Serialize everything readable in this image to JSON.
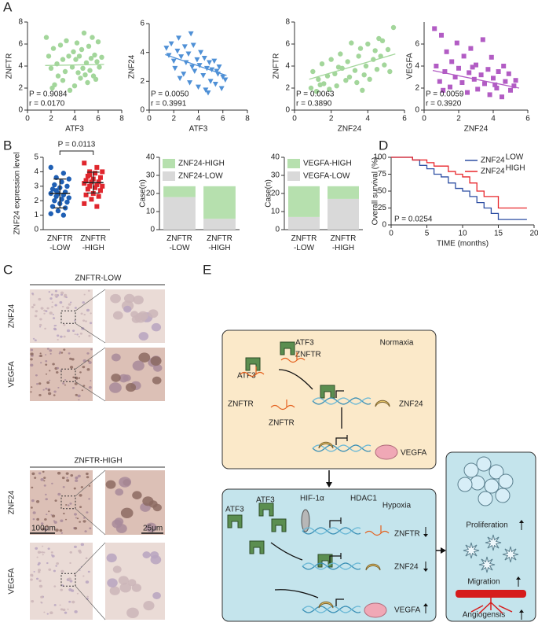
{
  "panel_labels": [
    "A",
    "B",
    "C",
    "D",
    "E"
  ],
  "chart_data": [
    {
      "type": "scatter",
      "x_label": "ATF3",
      "y_label": "ZNFTR",
      "color": "#a3d69b",
      "marker": "circle",
      "xlim": [
        0,
        8
      ],
      "ylim": [
        0,
        8
      ],
      "xticks": [
        0,
        2,
        4,
        6,
        8
      ],
      "yticks": [
        0,
        2,
        4,
        6,
        8
      ],
      "x": [
        1.6,
        1.8,
        2.0,
        2.2,
        2.3,
        2.5,
        2.6,
        2.8,
        3.0,
        3.0,
        3.2,
        3.3,
        3.5,
        3.6,
        3.8,
        3.9,
        4.0,
        4.1,
        4.2,
        4.3,
        4.4,
        4.5,
        4.6,
        4.7,
        4.8,
        5.0,
        5.1,
        5.2,
        5.3,
        5.4,
        5.5,
        5.6,
        5.7,
        5.8,
        5.9,
        6.0,
        6.1,
        6.3,
        2.1,
        4.9
      ],
      "y": [
        6.6,
        4.9,
        3.8,
        5.6,
        2.3,
        4.2,
        3.1,
        5.9,
        4.6,
        2.7,
        3.5,
        6.3,
        4.9,
        1.8,
        3.9,
        5.3,
        2.2,
        4.6,
        6.1,
        3.4,
        4.9,
        2.9,
        5.5,
        3.8,
        7.0,
        4.3,
        2.5,
        5.8,
        3.6,
        4.7,
        6.6,
        3.1,
        5.0,
        2.8,
        4.4,
        6.2,
        3.9,
        4.8,
        2.0,
        3.2
      ],
      "trend": {
        "x": [
          1.5,
          6.5
        ],
        "y": [
          4.05,
          4.15
        ]
      },
      "annotations": [
        "P = 0.9084",
        "r = 0.0170"
      ]
    },
    {
      "type": "scatter",
      "x_label": "ATF3",
      "y_label": "ZNF24",
      "color": "#4f90d6",
      "marker": "triangle",
      "xlim": [
        0,
        8
      ],
      "ylim": [
        0,
        6
      ],
      "xticks": [
        0,
        2,
        4,
        6,
        8
      ],
      "yticks": [
        0,
        2,
        4,
        6
      ],
      "x": [
        1.4,
        1.6,
        1.8,
        2.0,
        2.1,
        2.3,
        2.4,
        2.6,
        2.8,
        2.9,
        3.0,
        3.2,
        3.3,
        3.5,
        3.6,
        3.7,
        3.9,
        4.0,
        4.1,
        4.2,
        4.4,
        4.5,
        4.6,
        4.7,
        4.9,
        5.0,
        5.1,
        5.3,
        5.4,
        5.6,
        5.7,
        5.9,
        6.0,
        6.2,
        3.4,
        4.8,
        2.5,
        5.5
      ],
      "y": [
        4.3,
        3.8,
        4.6,
        3.4,
        2.9,
        4.1,
        5.0,
        3.7,
        2.5,
        4.4,
        3.3,
        3.9,
        1.9,
        3.0,
        4.5,
        2.7,
        3.5,
        1.6,
        3.1,
        4.0,
        2.4,
        3.6,
        1.4,
        2.9,
        3.3,
        2.0,
        2.8,
        3.4,
        1.8,
        2.5,
        3.0,
        1.5,
        2.3,
        2.1,
        5.3,
        1.2,
        2.2,
        2.7
      ],
      "trend": {
        "x": [
          1.3,
          6.3
        ],
        "y": [
          3.85,
          2.4
        ]
      },
      "annotations": [
        "P = 0.0050",
        "r = 0.3991"
      ]
    },
    {
      "type": "scatter",
      "x_label": "ZNF24",
      "y_label": "ZNFTR",
      "color": "#a3d69b",
      "marker": "circle",
      "xlim": [
        0,
        6
      ],
      "ylim": [
        0,
        8
      ],
      "xticks": [
        0,
        2,
        4,
        6
      ],
      "yticks": [
        0,
        2,
        4,
        6,
        8
      ],
      "x": [
        0.9,
        1.0,
        1.2,
        1.3,
        1.5,
        1.6,
        1.8,
        1.9,
        2.0,
        2.2,
        2.3,
        2.5,
        2.6,
        2.8,
        2.9,
        3.0,
        3.1,
        3.3,
        3.4,
        3.5,
        3.6,
        3.8,
        3.9,
        4.0,
        4.1,
        4.3,
        4.4,
        4.5,
        4.7,
        4.8,
        4.9,
        5.1,
        5.2,
        5.4,
        2.4,
        3.7,
        1.4,
        4.6
      ],
      "y": [
        2.0,
        3.5,
        1.7,
        2.8,
        4.2,
        2.4,
        3.1,
        1.9,
        4.6,
        3.3,
        2.2,
        5.1,
        3.8,
        2.7,
        4.4,
        3.0,
        6.1,
        3.6,
        2.5,
        4.9,
        5.6,
        3.2,
        4.0,
        6.0,
        2.8,
        4.6,
        5.4,
        3.7,
        4.9,
        6.3,
        4.1,
        5.5,
        3.5,
        7.5,
        3.9,
        1.8,
        2.3,
        6.5
      ],
      "trend": {
        "x": [
          0.8,
          5.5
        ],
        "y": [
          2.8,
          5.1
        ]
      },
      "annotations": [
        "P = 0.0063",
        "r = 0.3890"
      ]
    },
    {
      "type": "scatter",
      "x_label": "ZNF24",
      "y_label": "VEGFA",
      "color": "#b25cc4",
      "marker": "square",
      "xlim": [
        0,
        6
      ],
      "ylim": [
        0,
        8
      ],
      "xticks": [
        0,
        2,
        4,
        6
      ],
      "yticks": [
        0,
        2,
        4,
        6
      ],
      "x": [
        0.6,
        0.7,
        0.9,
        1.0,
        1.2,
        1.3,
        1.5,
        1.6,
        1.8,
        1.9,
        2.0,
        2.2,
        2.3,
        2.5,
        2.6,
        2.7,
        2.9,
        3.0,
        3.1,
        3.3,
        3.4,
        3.5,
        3.7,
        3.8,
        3.9,
        4.0,
        4.2,
        4.3,
        4.5,
        4.6,
        4.7,
        4.9,
        5.0,
        5.2,
        5.3,
        1.1,
        2.8,
        4.1
      ],
      "y": [
        7.4,
        4.0,
        2.6,
        6.8,
        3.5,
        5.3,
        2.1,
        4.4,
        3.0,
        6.1,
        3.8,
        2.5,
        4.9,
        1.6,
        3.4,
        5.6,
        2.8,
        4.1,
        1.9,
        3.2,
        6.4,
        2.4,
        3.7,
        1.4,
        4.8,
        2.9,
        2.0,
        3.5,
        1.2,
        4.0,
        2.6,
        3.3,
        1.8,
        2.2,
        2.7,
        1.8,
        3.9,
        2.3
      ],
      "trend": {
        "x": [
          0.5,
          5.5
        ],
        "y": [
          3.6,
          2.0
        ]
      },
      "annotations": [
        "P = 0.0059",
        "r = 0.3920"
      ]
    },
    {
      "type": "strip",
      "y_label": "ZNF24 expression level",
      "categories": [
        "ZNFTR\n-LOW",
        "ZNFTR\n-HIGH"
      ],
      "ylim": [
        0,
        5
      ],
      "yticks": [
        0,
        1,
        2,
        3,
        4,
        5
      ],
      "series": [
        {
          "color": "#1f5fb4",
          "marker": "circle",
          "mean": 2.5,
          "sd": 1.0,
          "values": [
            4.3,
            3.9,
            3.6,
            3.5,
            3.3,
            3.1,
            3.0,
            2.9,
            2.8,
            2.6,
            2.5,
            2.5,
            2.4,
            2.3,
            2.2,
            2.1,
            2.0,
            1.9,
            1.8,
            1.6,
            1.5,
            1.3,
            1.1,
            1.0,
            2.7
          ]
        },
        {
          "color": "#e0262d",
          "marker": "square",
          "mean": 3.25,
          "sd": 0.72,
          "values": [
            4.6,
            4.3,
            4.0,
            4.0,
            3.9,
            3.7,
            3.6,
            3.5,
            3.4,
            3.3,
            3.3,
            3.2,
            3.1,
            3.0,
            3.0,
            2.9,
            2.8,
            2.7,
            2.5,
            2.4,
            2.3,
            2.1,
            1.8,
            1.6,
            3.8
          ]
        }
      ],
      "annotation": "P = 0.0113"
    },
    {
      "type": "bar",
      "stacked": true,
      "y_label": "Case(n)",
      "categories": [
        "ZNFTR\n-LOW",
        "ZNFTR\n-HIGH"
      ],
      "ylim": [
        0,
        40
      ],
      "yticks": [
        0,
        10,
        20,
        30,
        40
      ],
      "legend": "top-left",
      "series": [
        {
          "name": "ZNF24-LOW",
          "color": "#d9d9d9",
          "values": [
            18,
            6
          ]
        },
        {
          "name": "ZNF24-HIGH",
          "color": "#b6e0ae",
          "values": [
            6,
            18
          ]
        }
      ]
    },
    {
      "type": "bar",
      "stacked": true,
      "y_label": "Case(n)",
      "categories": [
        "ZNFTR\n-LOW",
        "ZNFTR\n-HIGH"
      ],
      "ylim": [
        0,
        40
      ],
      "yticks": [
        0,
        10,
        20,
        30,
        40
      ],
      "legend": "top-left",
      "series": [
        {
          "name": "VEGFA-LOW",
          "color": "#d9d9d9",
          "values": [
            7,
            17
          ]
        },
        {
          "name": "VEGFA-HIGH",
          "color": "#b6e0ae",
          "values": [
            17,
            7
          ]
        }
      ]
    },
    {
      "type": "survival",
      "x_label": "TIME (months)",
      "y_label": "Overall survival (%)",
      "xlim": [
        0,
        20
      ],
      "ylim": [
        0,
        100
      ],
      "xticks": [
        0,
        5,
        10,
        15,
        20
      ],
      "yticks": [
        0,
        25,
        50,
        75,
        100
      ],
      "legend": "top-right",
      "annotation": "P = 0.0254",
      "series": [
        {
          "name": "ZNF24",
          "superscript": "LOW",
          "color": "#2e4fa3",
          "x": [
            0,
            3,
            4,
            5,
            6,
            7,
            8,
            9,
            10,
            11,
            12,
            13,
            14,
            15,
            19
          ],
          "values": [
            100,
            96,
            88,
            83,
            75,
            71,
            62,
            54,
            50,
            42,
            33,
            25,
            17,
            8,
            8
          ]
        },
        {
          "name": "ZNF24",
          "superscript": "HIGH",
          "color": "#e8262b",
          "x": [
            0,
            3,
            5,
            6,
            8,
            9,
            10,
            11,
            12,
            13,
            15,
            19
          ],
          "values": [
            100,
            96,
            92,
            87,
            79,
            75,
            71,
            62,
            50,
            42,
            25,
            25
          ]
        }
      ]
    }
  ],
  "histology": {
    "groups": [
      {
        "title": "ZNFTR-LOW",
        "rows": [
          "ZNF24",
          "VEGFA"
        ]
      },
      {
        "title": "ZNFTR-HIGH",
        "rows": [
          "ZNF24",
          "VEGFA"
        ],
        "scale_bars": [
          "100μm",
          "25μm"
        ]
      }
    ]
  },
  "diagram": {
    "normoxia": {
      "title": "Normaxia",
      "labels": [
        "ATF3",
        "ZNFTR",
        "ATF3",
        "ZNFTR",
        "ZNFTR",
        "ZNF24",
        "VEGFA"
      ]
    },
    "hypoxia": {
      "title": "Hypoxia",
      "labels": [
        "ATF3",
        "ATF3",
        "HIF-1α",
        "HDAC1",
        "ZNFTR",
        "ZNF24",
        "VEGFA"
      ]
    },
    "outcomes": [
      "Proliferation",
      "Migration",
      "Angiogensis"
    ]
  }
}
